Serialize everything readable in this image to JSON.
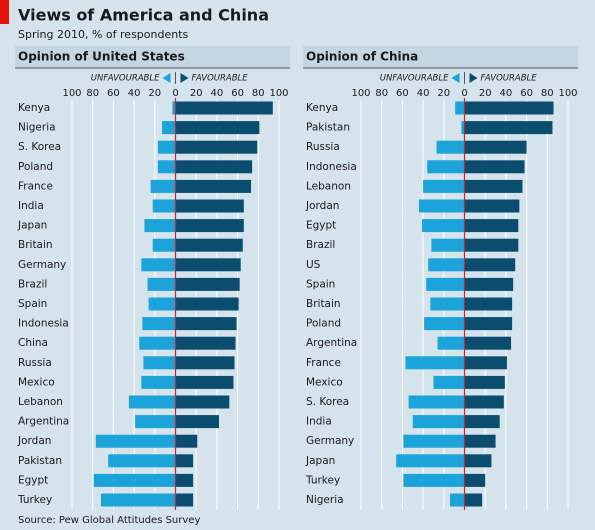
{
  "title": "Views of America and China",
  "subtitle": "Spring 2010, % of respondents",
  "source": "Source: Pew Global Attitudes Survey",
  "chart_data": [
    {
      "type": "bar",
      "orientation": "horizontal",
      "title": "Opinion of United States",
      "categories": [
        "Kenya",
        "Nigeria",
        "S. Korea",
        "Poland",
        "France",
        "India",
        "Japan",
        "Britain",
        "Germany",
        "Brazil",
        "Spain",
        "Indonesia",
        "China",
        "Russia",
        "Mexico",
        "Lebanon",
        "Argentina",
        "Jordan",
        "Pakistan",
        "Egypt",
        "Turkey"
      ],
      "series": [
        {
          "name": "UNFAVOURABLE",
          "color": "#1ba3da",
          "values": [
            -3,
            -13,
            -17,
            -17,
            -24,
            -22,
            -30,
            -22,
            -33,
            -27,
            -26,
            -32,
            -35,
            -31,
            -33,
            -45,
            -39,
            -77,
            -65,
            -79,
            -72
          ]
        },
        {
          "name": "FAVOURABLE",
          "color": "#0b4d6e",
          "values": [
            94,
            81,
            79,
            74,
            73,
            66,
            66,
            65,
            63,
            62,
            61,
            59,
            58,
            57,
            56,
            52,
            42,
            21,
            17,
            17,
            17
          ]
        }
      ],
      "xlim": [
        -100,
        100
      ],
      "xticks": [
        {
          "value": -100,
          "label": "100"
        },
        {
          "value": -80,
          "label": "80"
        },
        {
          "value": -60,
          "label": "60"
        },
        {
          "value": -40,
          "label": "40"
        },
        {
          "value": -20,
          "label": "20"
        },
        0,
        20,
        40,
        60,
        80,
        100
      ],
      "grid": true,
      "zero_line_color": "#c1272d"
    },
    {
      "type": "bar",
      "orientation": "horizontal",
      "title": "Opinion of China",
      "categories": [
        "Kenya",
        "Pakistan",
        "Russia",
        "Indonesia",
        "Lebanon",
        "Jordan",
        "Egypt",
        "Brazil",
        "US",
        "Spain",
        "Britain",
        "Poland",
        "Argentina",
        "France",
        "Mexico",
        "S. Korea",
        "India",
        "Germany",
        "Japan",
        "Turkey",
        "Nigeria"
      ],
      "series": [
        {
          "name": "UNFAVOURABLE",
          "color": "#1ba3da",
          "values": [
            -9,
            -3,
            -27,
            -36,
            -40,
            -44,
            -41,
            -32,
            -35,
            -37,
            -33,
            -39,
            -26,
            -57,
            -30,
            -54,
            -50,
            -59,
            -66,
            -59,
            -14
          ]
        },
        {
          "name": "FAVOURABLE",
          "color": "#0b4d6e",
          "values": [
            86,
            85,
            60,
            58,
            56,
            53,
            52,
            52,
            49,
            47,
            46,
            46,
            45,
            41,
            39,
            38,
            34,
            30,
            26,
            20,
            17
          ]
        }
      ],
      "xlim": [
        -100,
        100
      ],
      "xticks": [
        {
          "value": -100,
          "label": "100"
        },
        {
          "value": -80,
          "label": "80"
        },
        {
          "value": -60,
          "label": "60"
        },
        {
          "value": -40,
          "label": "40"
        },
        {
          "value": -20,
          "label": "20"
        },
        0,
        20,
        40,
        60,
        80,
        100
      ],
      "grid": true,
      "zero_line_color": "#c1272d"
    }
  ]
}
